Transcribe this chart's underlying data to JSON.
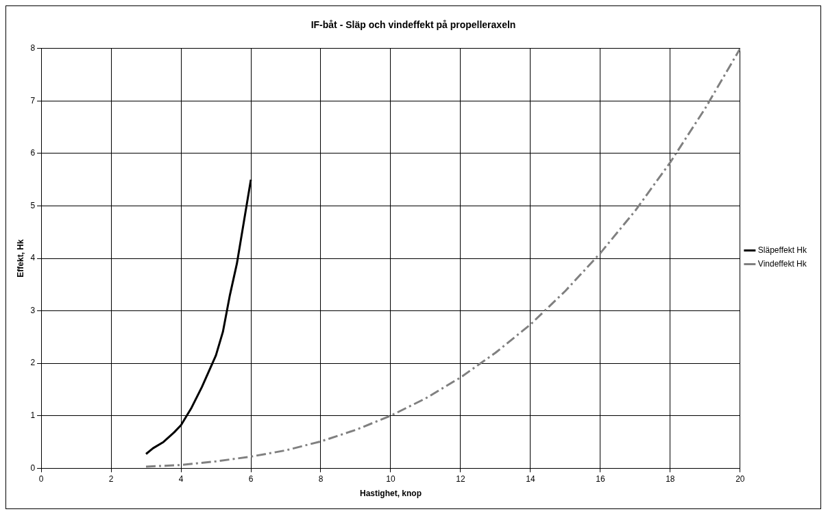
{
  "chart_data": {
    "type": "line",
    "title": "IF-båt - Släp och vindeffekt på propelleraxeln",
    "xlabel": "Hastighet, knop",
    "ylabel": "Effekt, Hk",
    "xlim": [
      0,
      20
    ],
    "xticks": [
      0,
      2,
      4,
      6,
      8,
      10,
      12,
      14,
      16,
      18,
      20
    ],
    "ylim": [
      0,
      8
    ],
    "yticks": [
      0,
      1,
      2,
      3,
      4,
      5,
      6,
      7,
      8
    ],
    "grid": true,
    "legend": "right",
    "marker": "none",
    "series": [
      {
        "name": "Släpeffekt Hk",
        "color": "#000000",
        "line_style": "solid",
        "x": [
          3,
          3.2,
          3.5,
          3.8,
          4,
          4.3,
          4.6,
          5,
          5.2,
          5.4,
          5.6,
          5.8,
          6
        ],
        "values": [
          0.27,
          0.38,
          0.5,
          0.68,
          0.82,
          1.15,
          1.55,
          2.15,
          2.6,
          3.3,
          3.9,
          4.7,
          5.5
        ]
      },
      {
        "name": "Vindeffekt Hk",
        "color": "#808080",
        "line_style": "dashed",
        "x": [
          3,
          4,
          5,
          6,
          7,
          8,
          9,
          10,
          11,
          12,
          13,
          14,
          15,
          16,
          17,
          18,
          19,
          20
        ],
        "values": [
          0.03,
          0.06,
          0.13,
          0.22,
          0.34,
          0.51,
          0.73,
          1.0,
          1.33,
          1.73,
          2.2,
          2.74,
          3.38,
          4.1,
          4.91,
          5.83,
          6.86,
          8
        ]
      }
    ]
  }
}
